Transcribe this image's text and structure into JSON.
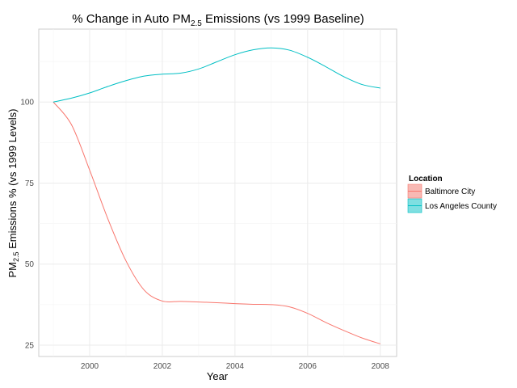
{
  "chart_data": {
    "type": "line",
    "title_main": "% Change in Auto PM",
    "title_sub": "2.5",
    "title_rest": " Emissions (vs 1999 Baseline)",
    "xlabel": "Year",
    "ylabel_main": "PM",
    "ylabel_sub": "2.5",
    "ylabel_rest": " Emissions % (vs 1999 Levels)",
    "xlim": [
      1998.6,
      2008.45
    ],
    "ylim": [
      21.5,
      122.5
    ],
    "x_ticks": [
      2000,
      2002,
      2004,
      2006,
      2008
    ],
    "y_ticks": [
      25,
      50,
      75,
      100
    ],
    "x_tick_labels": [
      "2000",
      "2002",
      "2004",
      "2006",
      "2008"
    ],
    "y_tick_labels": [
      "25",
      "50",
      "75",
      "100"
    ],
    "grid": true,
    "legend": {
      "title": "Location",
      "placement": "right"
    },
    "series": [
      {
        "name": "Baltimore City",
        "color": "#f8766d",
        "fill": "#f8b9b4",
        "x": [
          1999,
          1999.5,
          2000,
          2000.5,
          2001,
          2001.5,
          2002,
          2002.5,
          2003,
          2003.5,
          2004,
          2004.5,
          2005,
          2005.5,
          2006,
          2006.5,
          2007,
          2007.5,
          2008
        ],
        "y": [
          100,
          93,
          79,
          64,
          51,
          42,
          38.6,
          38.5,
          38.3,
          38.1,
          37.8,
          37.6,
          37.5,
          36.8,
          34.8,
          32.0,
          29.5,
          27.2,
          25.4
        ]
      },
      {
        "name": "Los Angeles County",
        "color": "#00bfc4",
        "fill": "#7fdfe1",
        "x": [
          1999,
          1999.5,
          2000,
          2000.5,
          2001,
          2001.5,
          2002,
          2002.5,
          2003,
          2003.5,
          2004,
          2004.5,
          2005,
          2005.5,
          2006,
          2006.5,
          2007,
          2007.5,
          2008
        ],
        "y": [
          100,
          101.2,
          102.8,
          104.8,
          106.6,
          108,
          108.6,
          108.9,
          110.2,
          112.4,
          114.6,
          116.1,
          116.7,
          116.0,
          113.8,
          110.9,
          107.8,
          105.4,
          104.3
        ]
      }
    ]
  }
}
